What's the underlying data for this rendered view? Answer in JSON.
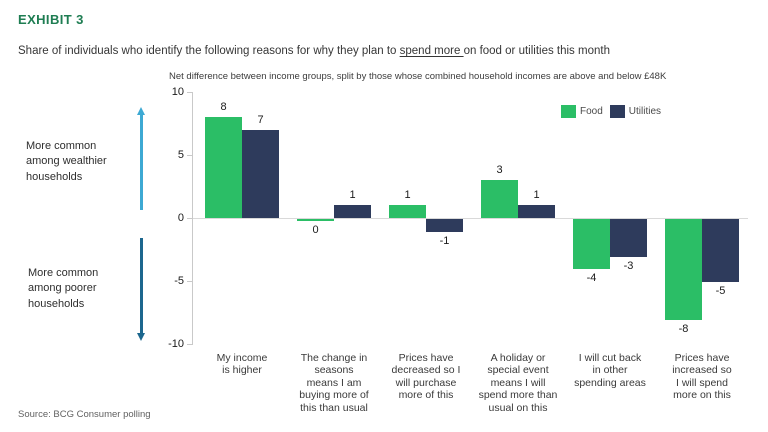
{
  "header": {
    "exhibit_label": "EXHIBIT 3",
    "subtitle_prefix": "Share of individuals who identify the following reasons for why they plan to ",
    "subtitle_underlined": "spend more ",
    "subtitle_suffix": "on food or utilities this month"
  },
  "chart_data": {
    "type": "bar",
    "title": "Net difference between income groups, split by those whose combined household incomes are above and below £48K",
    "categories": [
      "My income\nis higher",
      "The change in\nseasons\nmeans I am\nbuying more of\nthis than usual",
      "Prices have\ndecreased so I\nwill purchase\nmore of this",
      "A holiday or\nspecial event\nmeans I will\nspend more than\nusual on this",
      "I will cut back\nin other\nspending areas",
      "Prices have\nincreased so\nI will spend\nmore on this"
    ],
    "series": [
      {
        "name": "Food",
        "color": "#2BBE66",
        "values": [
          8,
          0,
          1,
          3,
          -4,
          -8
        ]
      },
      {
        "name": "Utilities",
        "color": "#2E3B5C",
        "values": [
          7,
          1,
          -1,
          1,
          -3,
          -5
        ]
      }
    ],
    "ylim": [
      -10,
      10
    ],
    "yticks": [
      10,
      5,
      0,
      -5,
      -10
    ],
    "legend_position": "top-right",
    "grid": "zero-line-only"
  },
  "annotations": {
    "upper_label": "More common\namong wealthier\nhouseholds",
    "lower_label": "More common\namong poorer\nhouseholds",
    "upper_arrow_color": "#3DA9D3",
    "lower_arrow_color": "#1C678E"
  },
  "footer": {
    "source": "Source: BCG Consumer polling"
  },
  "colors": {
    "exhibit_green": "#1E7D52",
    "food_green": "#2BBE66",
    "utilities_navy": "#2E3B5C",
    "axis_gray": "#C9C9C9"
  }
}
